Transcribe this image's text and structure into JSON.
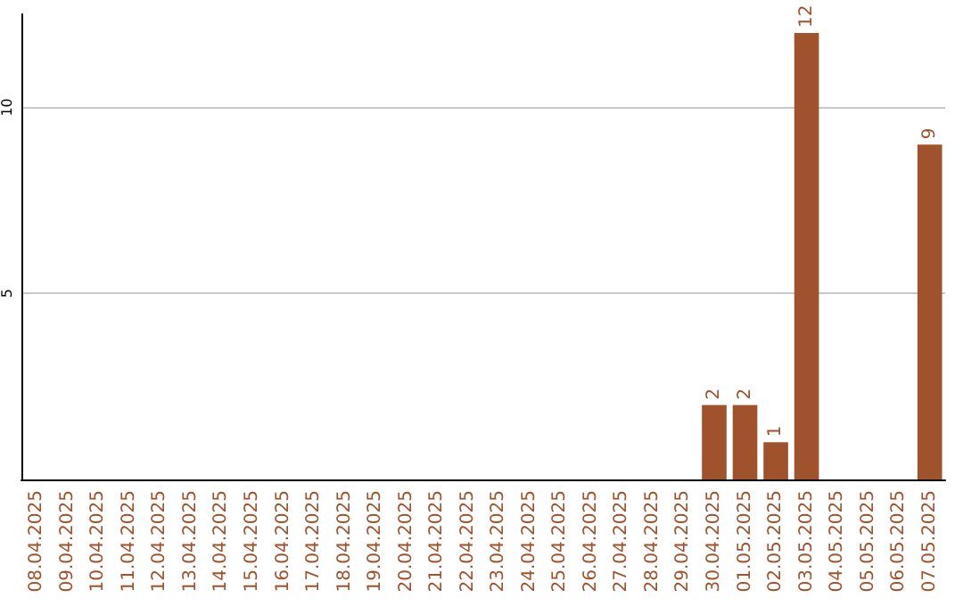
{
  "chart_data": {
    "type": "bar",
    "categories": [
      "08.04.2025",
      "09.04.2025",
      "10.04.2025",
      "11.04.2025",
      "12.04.2025",
      "13.04.2025",
      "14.04.2025",
      "15.04.2025",
      "16.04.2025",
      "17.04.2025",
      "18.04.2025",
      "19.04.2025",
      "20.04.2025",
      "21.04.2025",
      "22.04.2025",
      "23.04.2025",
      "24.04.2025",
      "25.04.2025",
      "26.04.2025",
      "27.04.2025",
      "28.04.2025",
      "29.04.2025",
      "30.04.2025",
      "01.05.2025",
      "02.05.2025",
      "03.05.2025",
      "04.05.2025",
      "05.05.2025",
      "06.05.2025",
      "07.05.2025"
    ],
    "values": [
      0,
      0,
      0,
      0,
      0,
      0,
      0,
      0,
      0,
      0,
      0,
      0,
      0,
      0,
      0,
      0,
      0,
      0,
      0,
      0,
      0,
      0,
      2,
      2,
      1,
      12,
      0,
      0,
      0,
      9
    ],
    "value_labels": [
      null,
      null,
      null,
      null,
      null,
      null,
      null,
      null,
      null,
      null,
      null,
      null,
      null,
      null,
      null,
      null,
      null,
      null,
      null,
      null,
      null,
      null,
      "2",
      "2",
      "1",
      "12",
      null,
      null,
      null,
      "9"
    ],
    "color": "#a0522d",
    "ylim": [
      0,
      12.5
    ],
    "yticks": [
      5,
      10
    ],
    "grid": "y"
  }
}
